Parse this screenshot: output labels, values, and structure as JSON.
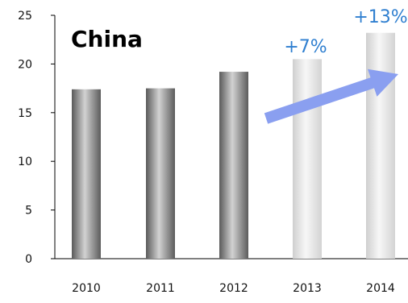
{
  "chart_data": {
    "type": "bar",
    "title": "China",
    "xlabel": "",
    "ylabel": "",
    "categories": [
      "2010",
      "2011",
      "2012",
      "2013",
      "2014"
    ],
    "values": [
      17.4,
      17.5,
      19.2,
      20.5,
      23.2
    ],
    "forecast": [
      false,
      false,
      false,
      true,
      true
    ],
    "ylim": [
      0,
      25
    ],
    "yticks": [
      "0",
      "5",
      "10",
      "15",
      "20",
      "25"
    ],
    "grid": false,
    "legend": "none",
    "annotations": [
      {
        "text": "+7%",
        "category": "2013"
      },
      {
        "text": "+13%",
        "category": "2014"
      }
    ],
    "trend_arrow": {
      "from_category": "2012",
      "to_category": "2014",
      "color": "#8a9ff0"
    },
    "colors": {
      "actual_bar": "#8c8c8c",
      "forecast_bar": "#e4e4e4",
      "annotation": "#2f7fd0"
    }
  }
}
